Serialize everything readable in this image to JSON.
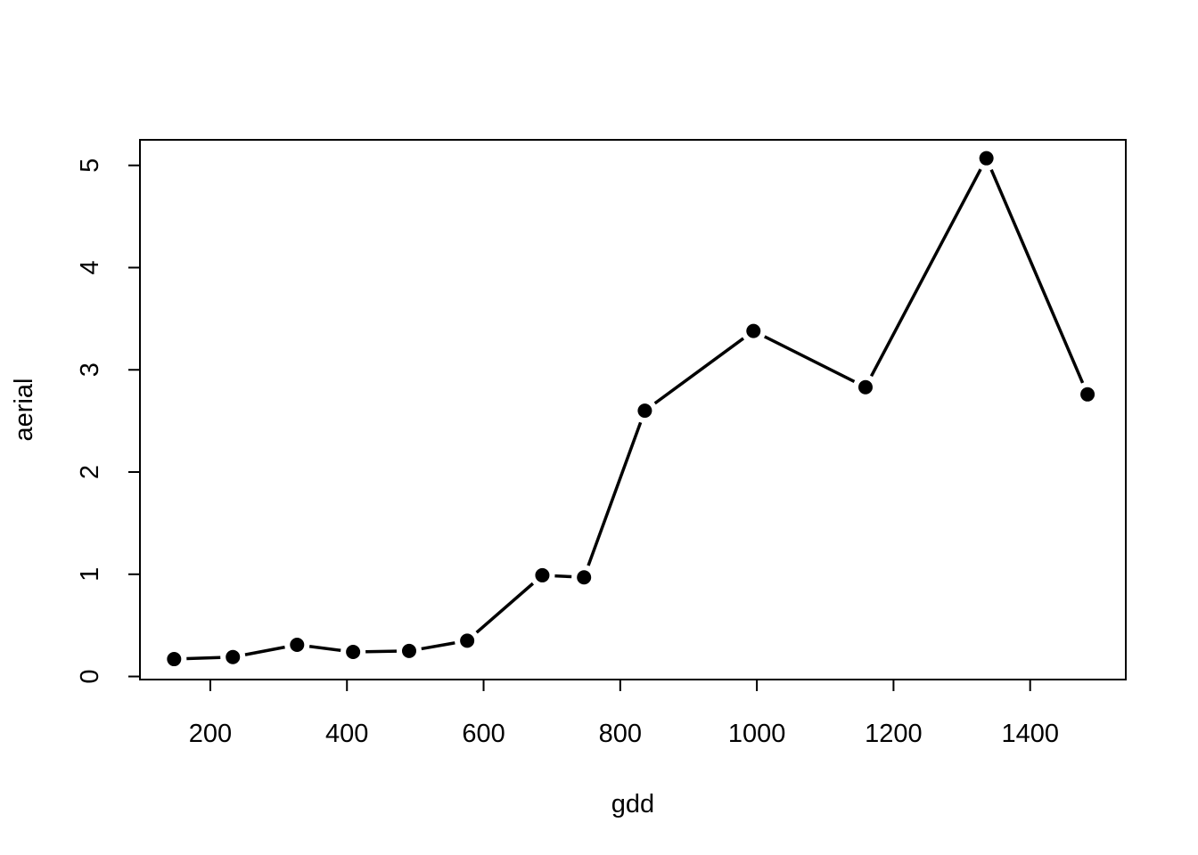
{
  "chart_data": {
    "type": "line",
    "title": "",
    "xlabel": "gdd",
    "ylabel": "aerial",
    "xlim": [
      97,
      1540
    ],
    "ylim": [
      -0.03,
      5.25
    ],
    "x_ticks": [
      200,
      400,
      600,
      800,
      1000,
      1200,
      1400
    ],
    "y_ticks": [
      0,
      1,
      2,
      3,
      4,
      5
    ],
    "grid": false,
    "legend": "none",
    "line_color": "#000000",
    "series": [
      {
        "x": [
          147,
          233,
          327,
          409,
          491,
          576,
          686,
          747,
          836,
          995,
          1159,
          1336,
          1484
        ],
        "y": [
          0.17,
          0.19,
          0.31,
          0.24,
          0.25,
          0.35,
          0.99,
          0.97,
          2.6,
          3.38,
          2.83,
          5.07,
          2.76
        ]
      }
    ]
  }
}
